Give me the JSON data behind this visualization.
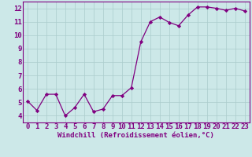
{
  "x": [
    0,
    1,
    2,
    3,
    4,
    5,
    6,
    7,
    8,
    9,
    10,
    11,
    12,
    13,
    14,
    15,
    16,
    17,
    18,
    19,
    20,
    21,
    22,
    23
  ],
  "y": [
    5.1,
    4.4,
    5.6,
    5.6,
    4.0,
    4.6,
    5.6,
    4.3,
    4.5,
    5.5,
    5.5,
    6.1,
    9.5,
    11.0,
    11.35,
    10.95,
    10.7,
    11.5,
    12.1,
    12.1,
    12.0,
    11.85,
    12.0,
    11.8
  ],
  "line_color": "#800080",
  "marker_color": "#800080",
  "bg_color": "#cce8e8",
  "grid_color": "#aacccc",
  "xlabel": "Windchill (Refroidissement éolien,°C)",
  "xlim": [
    -0.5,
    23.5
  ],
  "ylim": [
    3.5,
    12.5
  ],
  "yticks": [
    4,
    5,
    6,
    7,
    8,
    9,
    10,
    11,
    12
  ],
  "xticks": [
    0,
    1,
    2,
    3,
    4,
    5,
    6,
    7,
    8,
    9,
    10,
    11,
    12,
    13,
    14,
    15,
    16,
    17,
    18,
    19,
    20,
    21,
    22,
    23
  ],
  "tick_color": "#800080",
  "xlabel_color": "#800080",
  "axis_color": "#800080",
  "tick_fontsize": 6.5,
  "xlabel_fontsize": 6.5,
  "linewidth": 0.9,
  "markersize": 2.2
}
